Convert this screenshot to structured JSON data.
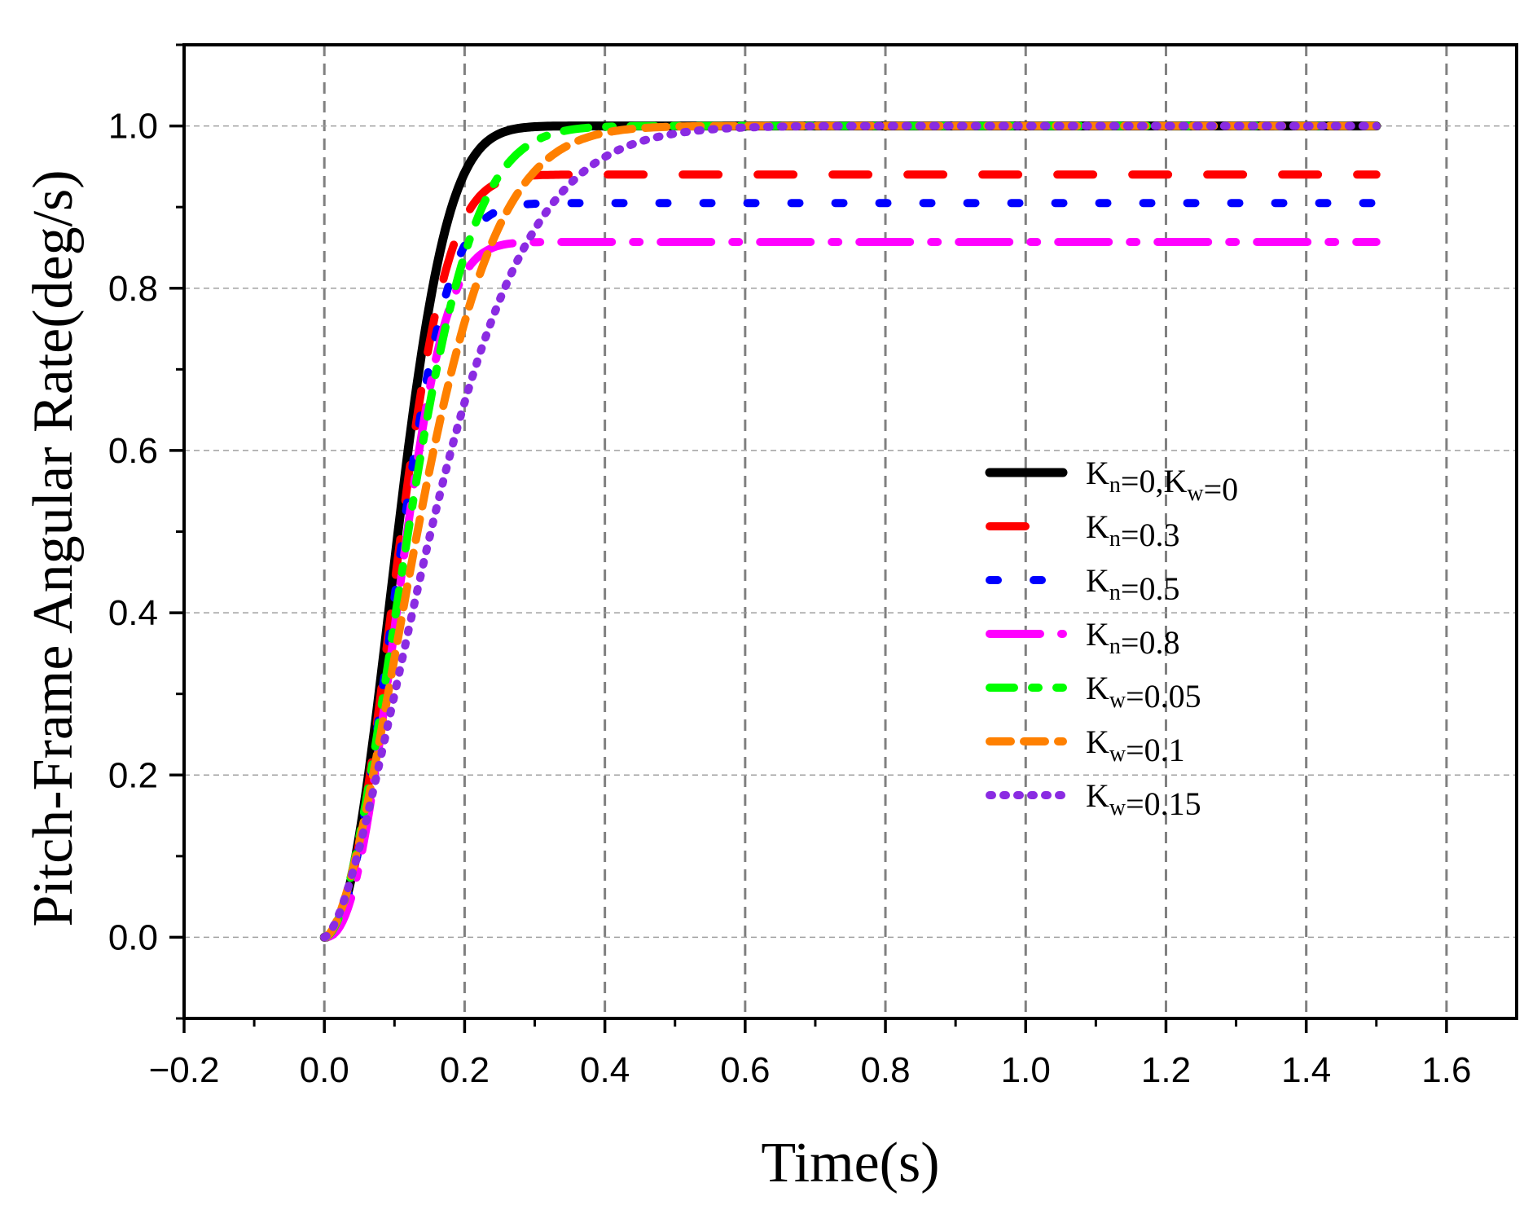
{
  "chart_data": {
    "type": "line",
    "title": "",
    "xlabel": "Time(s)",
    "ylabel": "Pitch-Frame Angular Rate(deg/s)",
    "xlim": [
      -0.2,
      1.7
    ],
    "ylim": [
      -0.1,
      1.1
    ],
    "xticks": [
      -0.2,
      0.0,
      0.2,
      0.4,
      0.6,
      0.8,
      1.0,
      1.2,
      1.4,
      1.6
    ],
    "xtick_labels": [
      "−0.2",
      "0.0",
      "0.2",
      "0.4",
      "0.6",
      "0.8",
      "1.0",
      "1.2",
      "1.4",
      "1.6"
    ],
    "yticks": [
      0.0,
      0.2,
      0.4,
      0.6,
      0.8,
      1.0
    ],
    "ytick_labels": [
      "0.0",
      "0.2",
      "0.4",
      "0.6",
      "0.8",
      "1.0"
    ],
    "grid": true,
    "legend_position": "center-right",
    "t_end": 1.5,
    "series": [
      {
        "name": "K_n=0,K_w=0",
        "label_parts": [
          {
            "base": "K",
            "sub": "n"
          },
          {
            "text": "=0,"
          },
          {
            "base": "K",
            "sub": "w"
          },
          {
            "text": "=0"
          }
        ],
        "color": "#000000",
        "style": "solid",
        "final": 1.0,
        "rise_time": 0.185,
        "steepness": 2.2
      },
      {
        "name": "K_n=0.3",
        "label_parts": [
          {
            "base": "K",
            "sub": "n"
          },
          {
            "text": "=0.3"
          }
        ],
        "color": "#ff0000",
        "style": "dash",
        "final": 0.94,
        "rise_time": 0.185,
        "steepness": 2.2
      },
      {
        "name": "K_n=0.5",
        "label_parts": [
          {
            "base": "K",
            "sub": "n"
          },
          {
            "text": "=0.5"
          }
        ],
        "color": "#0000ff",
        "style": "dot",
        "final": 0.905,
        "rise_time": 0.185,
        "steepness": 2.2
      },
      {
        "name": "K_n=0.8",
        "label_parts": [
          {
            "base": "K",
            "sub": "n"
          },
          {
            "text": "=0.8"
          }
        ],
        "color": "#ff00ff",
        "style": "dashdot",
        "final": 0.857,
        "rise_time": 0.18,
        "steepness": 2.4
      },
      {
        "name": "K_w=0.05",
        "label_parts": [
          {
            "base": "K",
            "sub": "w"
          },
          {
            "text": "=0.05"
          }
        ],
        "color": "#00ff00",
        "style": "dashdotshort",
        "final": 1.0,
        "rise_time": 0.23,
        "steepness": 1.9
      },
      {
        "name": "K_w=0.1",
        "label_parts": [
          {
            "base": "K",
            "sub": "w"
          },
          {
            "text": "=0.1"
          }
        ],
        "color": "#ff8000",
        "style": "shortdash",
        "final": 1.0,
        "rise_time": 0.27,
        "steepness": 1.75
      },
      {
        "name": "K_w=0.15",
        "label_parts": [
          {
            "base": "K",
            "sub": "w"
          },
          {
            "text": "=0.15"
          }
        ],
        "color": "#8a2be2",
        "style": "shortdot",
        "final": 1.0,
        "rise_time": 0.33,
        "steepness": 1.6
      }
    ]
  }
}
